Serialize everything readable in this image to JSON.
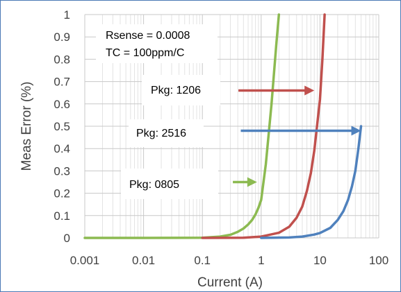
{
  "chart_data": {
    "type": "line",
    "xscale": "log",
    "xlabel": "Current (A)",
    "ylabel": "Meas Error (%)",
    "xlim": [
      0.001,
      100
    ],
    "ylim": [
      0,
      1
    ],
    "x_ticks": [
      "0.001",
      "0.01",
      "0.1",
      "1",
      "10",
      "100"
    ],
    "y_ticks": [
      "0",
      "0.1",
      "0.2",
      "0.3",
      "0.4",
      "0.5",
      "0.6",
      "0.7",
      "0.8",
      "0.9",
      "1"
    ],
    "grid": "major and minor gridlines on",
    "legend": "none",
    "annotations": {
      "params_line1": "Rsense = 0.0008",
      "params_line2": "TC = 100ppm/C",
      "label_1206": "Pkg: 1206",
      "label_2516": "Pkg: 2516",
      "label_0805": "Pkg: 0805"
    },
    "series": [
      {
        "color": "#8cba51",
        "points": [
          [
            0.001,
            0
          ],
          [
            0.01,
            0
          ],
          [
            0.1,
            0.001
          ],
          [
            0.2,
            0.006
          ],
          [
            0.3,
            0.014
          ],
          [
            0.4,
            0.027
          ],
          [
            0.5,
            0.042
          ],
          [
            0.6,
            0.06
          ],
          [
            0.7,
            0.08
          ],
          [
            0.8,
            0.105
          ],
          [
            0.9,
            0.135
          ],
          [
            1,
            0.17
          ],
          [
            1.2,
            0.33
          ],
          [
            1.5,
            0.6
          ],
          [
            1.8,
            0.86
          ],
          [
            2,
            1.0
          ]
        ]
      },
      {
        "color": "#c0504d",
        "points": [
          [
            0.1,
            0
          ],
          [
            0.5,
            0.001
          ],
          [
            1,
            0.006
          ],
          [
            2,
            0.023
          ],
          [
            3,
            0.05
          ],
          [
            4,
            0.09
          ],
          [
            5,
            0.14
          ],
          [
            6,
            0.21
          ],
          [
            7,
            0.29
          ],
          [
            8,
            0.39
          ],
          [
            9,
            0.51
          ],
          [
            10,
            0.62
          ],
          [
            11,
            0.8
          ],
          [
            12,
            1.0
          ]
        ]
      },
      {
        "color": "#4f81bd",
        "points": [
          [
            1,
            0
          ],
          [
            3,
            0.002
          ],
          [
            5,
            0.006
          ],
          [
            8,
            0.015
          ],
          [
            10,
            0.022
          ],
          [
            15,
            0.045
          ],
          [
            20,
            0.08
          ],
          [
            25,
            0.12
          ],
          [
            30,
            0.17
          ],
          [
            35,
            0.23
          ],
          [
            40,
            0.3
          ],
          [
            45,
            0.4
          ],
          [
            50,
            0.5
          ]
        ]
      }
    ],
    "arrows": [
      {
        "color": "#c0504d",
        "x_start": 0.41,
        "x_end": 8,
        "y": 0.66
      },
      {
        "color": "#4f81bd",
        "x_start": 0.45,
        "x_end": 50,
        "y": 0.48
      },
      {
        "color": "#8cba51",
        "x_start": 0.33,
        "x_end": 0.85,
        "y": 0.25
      }
    ]
  }
}
